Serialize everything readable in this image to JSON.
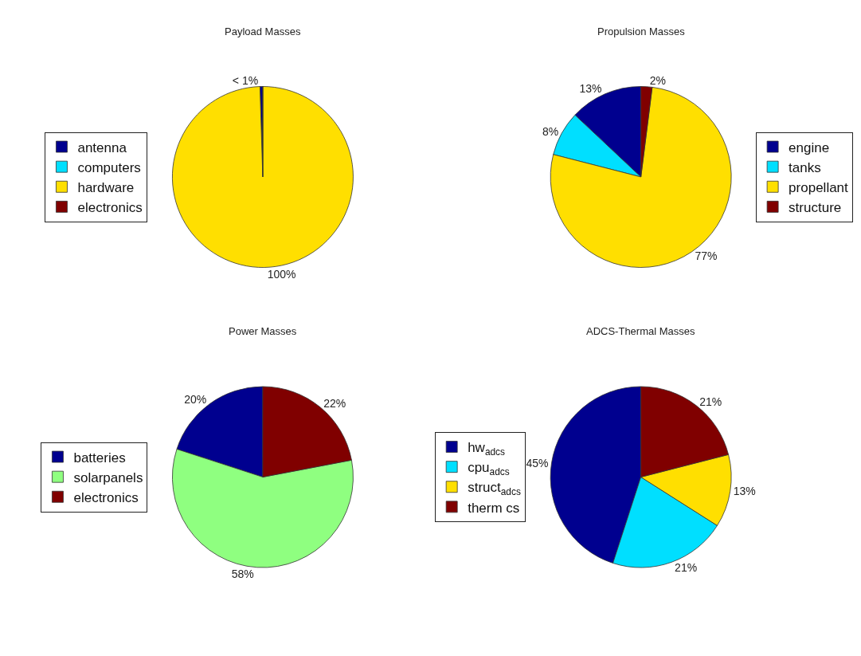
{
  "chart_data": [
    {
      "type": "pie",
      "title": "Payload Masses",
      "categories": [
        "antenna",
        "computers",
        "hardware",
        "electronics"
      ],
      "values": [
        0.5,
        0,
        99.5,
        0
      ],
      "value_labels": [
        "< 1%",
        null,
        "100%",
        null
      ],
      "colors": [
        "#00008f",
        "#00dfff",
        "#ffdf00",
        "#800000"
      ],
      "legend": "left"
    },
    {
      "type": "pie",
      "title": "Propulsion Masses",
      "categories": [
        "engine",
        "tanks",
        "propellant",
        "structure"
      ],
      "values": [
        13,
        8,
        77,
        2
      ],
      "value_labels": [
        "13%",
        "8%",
        "77%",
        "2%"
      ],
      "colors": [
        "#00008f",
        "#00dfff",
        "#ffdf00",
        "#800000"
      ],
      "legend": "right"
    },
    {
      "type": "pie",
      "title": "Power Masses",
      "categories": [
        "batteries",
        "solarpanels",
        "electronics"
      ],
      "values": [
        20,
        58,
        22
      ],
      "value_labels": [
        "20%",
        "58%",
        "22%"
      ],
      "colors": [
        "#00008f",
        "#8fff80",
        "#800000"
      ],
      "legend": "left"
    },
    {
      "type": "pie",
      "title": "ADCS-Thermal Masses",
      "categories": [
        "hw$_{adcs}$",
        "cpu$_{adcs}$",
        "struct$_{adcs}$",
        "therm cs"
      ],
      "values": [
        45,
        21,
        13,
        21
      ],
      "value_labels": [
        "45%",
        "21%",
        "13%",
        "21%"
      ],
      "colors": [
        "#00008f",
        "#00dfff",
        "#ffdf00",
        "#800000"
      ],
      "legend": "left"
    }
  ]
}
